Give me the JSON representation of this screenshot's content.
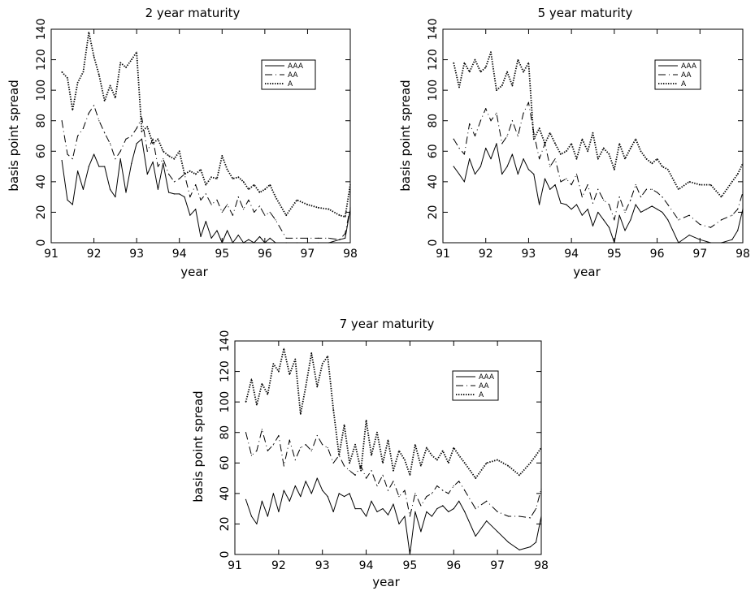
{
  "chart_data": [
    {
      "type": "line",
      "title": "2 year maturity",
      "xlabel": "year",
      "ylabel": "basis point spread",
      "xlim": [
        91,
        98
      ],
      "ylim": [
        0,
        140
      ],
      "xticks": [
        "91",
        "92",
        "93",
        "94",
        "95",
        "96",
        "97",
        "98"
      ],
      "yticks": [
        "0",
        "20",
        "40",
        "60",
        "80",
        "100",
        "120",
        "140"
      ],
      "legend_position": "top-right",
      "series": [
        {
          "name": "AAA",
          "style": "solid",
          "x": [
            91.25,
            91.38,
            91.5,
            91.62,
            91.75,
            91.88,
            92.0,
            92.12,
            92.25,
            92.38,
            92.5,
            92.62,
            92.75,
            92.88,
            93.0,
            93.12,
            93.25,
            93.38,
            93.5,
            93.62,
            93.75,
            93.88,
            94.0,
            94.12,
            94.25,
            94.38,
            94.5,
            94.62,
            94.75,
            94.88,
            95.0,
            95.12,
            95.25,
            95.38,
            95.5,
            95.62,
            95.75,
            95.88,
            96.0,
            96.12,
            96.25,
            96.5,
            96.75,
            97.0,
            97.25,
            97.5,
            97.75,
            97.88,
            98.0
          ],
          "y": [
            54,
            28,
            25,
            47,
            35,
            50,
            58,
            50,
            50,
            35,
            30,
            55,
            33,
            52,
            65,
            68,
            45,
            53,
            35,
            52,
            33,
            32,
            32,
            30,
            18,
            22,
            4,
            14,
            3,
            8,
            0,
            8,
            0,
            5,
            0,
            2,
            0,
            4,
            0,
            3,
            0,
            0,
            0,
            0,
            0,
            0,
            2,
            3,
            22
          ]
        },
        {
          "name": "AA",
          "style": "dashed",
          "x": [
            91.25,
            91.38,
            91.5,
            91.62,
            91.75,
            91.88,
            92.0,
            92.12,
            92.25,
            92.38,
            92.5,
            92.62,
            92.75,
            92.88,
            93.0,
            93.12,
            93.25,
            93.38,
            93.5,
            93.62,
            93.75,
            93.88,
            94.0,
            94.12,
            94.25,
            94.38,
            94.5,
            94.62,
            94.75,
            94.88,
            95.0,
            95.12,
            95.25,
            95.38,
            95.5,
            95.62,
            95.75,
            95.88,
            96.0,
            96.12,
            96.25,
            96.5,
            96.75,
            97.0,
            97.25,
            97.5,
            97.75,
            97.88,
            98.0
          ],
          "y": [
            80,
            58,
            55,
            70,
            75,
            85,
            90,
            80,
            72,
            65,
            55,
            60,
            68,
            70,
            75,
            82,
            60,
            68,
            50,
            55,
            45,
            40,
            42,
            45,
            30,
            38,
            28,
            32,
            25,
            28,
            20,
            25,
            18,
            30,
            22,
            28,
            20,
            24,
            18,
            20,
            15,
            3,
            3,
            3,
            3,
            3,
            2,
            6,
            23
          ]
        },
        {
          "name": "A",
          "style": "dotted",
          "x": [
            91.25,
            91.38,
            91.5,
            91.62,
            91.75,
            91.88,
            92.0,
            92.12,
            92.25,
            92.38,
            92.5,
            92.62,
            92.75,
            92.88,
            93.0,
            93.12,
            93.25,
            93.38,
            93.5,
            93.62,
            93.75,
            93.88,
            94.0,
            94.12,
            94.25,
            94.38,
            94.5,
            94.62,
            94.75,
            94.88,
            95.0,
            95.12,
            95.25,
            95.38,
            95.5,
            95.62,
            95.75,
            95.88,
            96.0,
            96.12,
            96.25,
            96.5,
            96.75,
            97.0,
            97.25,
            97.5,
            97.75,
            97.88,
            98.0
          ],
          "y": [
            112,
            108,
            87,
            105,
            112,
            138,
            122,
            110,
            93,
            103,
            95,
            118,
            115,
            120,
            125,
            73,
            76,
            65,
            68,
            60,
            57,
            55,
            60,
            45,
            47,
            45,
            48,
            38,
            43,
            42,
            57,
            48,
            42,
            43,
            40,
            35,
            38,
            33,
            35,
            38,
            30,
            18,
            28,
            25,
            23,
            22,
            18,
            17,
            38
          ]
        }
      ]
    },
    {
      "type": "line",
      "title": "5 year maturity",
      "xlabel": "year",
      "ylabel": "basis point spread",
      "xlim": [
        91,
        98
      ],
      "ylim": [
        0,
        140
      ],
      "xticks": [
        "91",
        "92",
        "93",
        "94",
        "95",
        "96",
        "97",
        "98"
      ],
      "yticks": [
        "0",
        "20",
        "40",
        "60",
        "80",
        "100",
        "120",
        "140"
      ],
      "legend_position": "top-right",
      "series": [
        {
          "name": "AAA",
          "style": "solid",
          "x": [
            91.25,
            91.38,
            91.5,
            91.62,
            91.75,
            91.88,
            92.0,
            92.12,
            92.25,
            92.38,
            92.5,
            92.62,
            92.75,
            92.88,
            93.0,
            93.12,
            93.25,
            93.38,
            93.5,
            93.62,
            93.75,
            93.88,
            94.0,
            94.12,
            94.25,
            94.38,
            94.5,
            94.62,
            94.75,
            94.88,
            95.0,
            95.12,
            95.25,
            95.38,
            95.5,
            95.62,
            95.75,
            95.88,
            96.0,
            96.12,
            96.25,
            96.5,
            96.75,
            97.0,
            97.25,
            97.5,
            97.75,
            97.88,
            98.0
          ],
          "y": [
            50,
            45,
            40,
            55,
            45,
            50,
            62,
            55,
            65,
            45,
            50,
            58,
            45,
            55,
            48,
            45,
            25,
            42,
            35,
            38,
            26,
            25,
            22,
            25,
            18,
            22,
            11,
            20,
            15,
            10,
            0,
            18,
            8,
            15,
            25,
            20,
            22,
            24,
            22,
            20,
            15,
            0,
            5,
            2,
            0,
            0,
            2,
            8,
            22
          ]
        },
        {
          "name": "AA",
          "style": "dashed",
          "x": [
            91.25,
            91.38,
            91.5,
            91.62,
            91.75,
            91.88,
            92.0,
            92.12,
            92.25,
            92.38,
            92.5,
            92.62,
            92.75,
            92.88,
            93.0,
            93.12,
            93.25,
            93.38,
            93.5,
            93.62,
            93.75,
            93.88,
            94.0,
            94.12,
            94.25,
            94.38,
            94.5,
            94.62,
            94.75,
            94.88,
            95.0,
            95.12,
            95.25,
            95.38,
            95.5,
            95.62,
            95.75,
            95.88,
            96.0,
            96.12,
            96.25,
            96.5,
            96.75,
            97.0,
            97.25,
            97.5,
            97.75,
            97.88,
            98.0
          ],
          "y": [
            68,
            62,
            58,
            78,
            70,
            80,
            88,
            80,
            85,
            65,
            70,
            80,
            70,
            85,
            92,
            72,
            55,
            65,
            50,
            55,
            40,
            42,
            38,
            45,
            30,
            38,
            26,
            35,
            28,
            25,
            15,
            30,
            20,
            28,
            38,
            30,
            35,
            35,
            33,
            30,
            25,
            15,
            18,
            12,
            10,
            15,
            18,
            22,
            33
          ]
        },
        {
          "name": "A",
          "style": "dotted",
          "x": [
            91.25,
            91.38,
            91.5,
            91.62,
            91.75,
            91.88,
            92.0,
            92.12,
            92.25,
            92.38,
            92.5,
            92.62,
            92.75,
            92.88,
            93.0,
            93.12,
            93.25,
            93.38,
            93.5,
            93.62,
            93.75,
            93.88,
            94.0,
            94.12,
            94.25,
            94.38,
            94.5,
            94.62,
            94.75,
            94.88,
            95.0,
            95.12,
            95.25,
            95.38,
            95.5,
            95.62,
            95.75,
            95.88,
            96.0,
            96.12,
            96.25,
            96.5,
            96.75,
            97.0,
            97.25,
            97.5,
            97.75,
            97.88,
            98.0
          ],
          "y": [
            118,
            102,
            118,
            112,
            120,
            112,
            115,
            125,
            100,
            103,
            112,
            103,
            120,
            112,
            118,
            68,
            75,
            65,
            72,
            65,
            58,
            60,
            65,
            55,
            68,
            60,
            72,
            55,
            62,
            58,
            48,
            65,
            55,
            62,
            68,
            60,
            55,
            52,
            55,
            50,
            48,
            35,
            40,
            38,
            38,
            30,
            40,
            45,
            52
          ]
        }
      ]
    },
    {
      "type": "line",
      "title": "7 year maturity",
      "xlabel": "year",
      "ylabel": "basis point spread",
      "xlim": [
        91,
        98
      ],
      "ylim": [
        0,
        140
      ],
      "xticks": [
        "91",
        "92",
        "93",
        "94",
        "95",
        "96",
        "97",
        "98"
      ],
      "yticks": [
        "0",
        "20",
        "40",
        "60",
        "80",
        "100",
        "120",
        "140"
      ],
      "legend_position": "top-right",
      "series": [
        {
          "name": "AAA",
          "style": "solid",
          "x": [
            91.25,
            91.38,
            91.5,
            91.62,
            91.75,
            91.88,
            92.0,
            92.12,
            92.25,
            92.38,
            92.5,
            92.62,
            92.75,
            92.88,
            93.0,
            93.12,
            93.25,
            93.38,
            93.5,
            93.62,
            93.75,
            93.88,
            94.0,
            94.12,
            94.25,
            94.38,
            94.5,
            94.62,
            94.75,
            94.88,
            95.0,
            95.12,
            95.25,
            95.38,
            95.5,
            95.62,
            95.75,
            95.88,
            96.0,
            96.12,
            96.25,
            96.5,
            96.75,
            97.0,
            97.25,
            97.5,
            97.75,
            97.88,
            98.0
          ],
          "y": [
            36,
            25,
            20,
            35,
            25,
            40,
            28,
            42,
            35,
            45,
            38,
            48,
            40,
            50,
            42,
            38,
            28,
            40,
            38,
            40,
            30,
            30,
            25,
            35,
            28,
            30,
            26,
            33,
            20,
            25,
            0,
            28,
            15,
            28,
            25,
            30,
            32,
            28,
            30,
            35,
            28,
            12,
            22,
            15,
            8,
            3,
            5,
            8,
            25
          ]
        },
        {
          "name": "AA",
          "style": "dashed",
          "x": [
            91.25,
            91.38,
            91.5,
            91.62,
            91.75,
            91.88,
            92.0,
            92.12,
            92.25,
            92.38,
            92.5,
            92.62,
            92.75,
            92.88,
            93.0,
            93.12,
            93.25,
            93.38,
            93.5,
            93.62,
            93.75,
            93.88,
            94.0,
            94.12,
            94.25,
            94.38,
            94.5,
            94.62,
            94.75,
            94.88,
            95.0,
            95.12,
            95.25,
            95.38,
            95.5,
            95.62,
            95.75,
            95.88,
            96.0,
            96.12,
            96.25,
            96.5,
            96.75,
            97.0,
            97.25,
            97.5,
            97.75,
            97.88,
            98.0
          ],
          "y": [
            80,
            65,
            68,
            82,
            68,
            72,
            78,
            58,
            75,
            62,
            70,
            72,
            68,
            78,
            72,
            70,
            60,
            65,
            58,
            55,
            52,
            58,
            50,
            55,
            45,
            52,
            42,
            48,
            38,
            42,
            25,
            40,
            32,
            38,
            40,
            45,
            42,
            40,
            45,
            48,
            42,
            30,
            35,
            28,
            25,
            25,
            24,
            30,
            43
          ]
        },
        {
          "name": "A",
          "style": "dotted",
          "x": [
            91.25,
            91.38,
            91.5,
            91.62,
            91.75,
            91.88,
            92.0,
            92.12,
            92.25,
            92.38,
            92.5,
            92.62,
            92.75,
            92.88,
            93.0,
            93.12,
            93.25,
            93.38,
            93.5,
            93.62,
            93.75,
            93.88,
            94.0,
            94.12,
            94.25,
            94.38,
            94.5,
            94.62,
            94.75,
            94.88,
            95.0,
            95.12,
            95.25,
            95.38,
            95.5,
            95.62,
            95.75,
            95.88,
            96.0,
            96.12,
            96.25,
            96.5,
            96.75,
            97.0,
            97.25,
            97.5,
            97.75,
            97.88,
            98.0
          ],
          "y": [
            100,
            115,
            98,
            112,
            105,
            125,
            120,
            135,
            118,
            128,
            92,
            110,
            132,
            110,
            125,
            130,
            95,
            65,
            85,
            60,
            72,
            55,
            88,
            65,
            80,
            60,
            75,
            55,
            68,
            62,
            52,
            72,
            58,
            70,
            65,
            62,
            68,
            60,
            70,
            65,
            60,
            50,
            60,
            62,
            58,
            52,
            60,
            65,
            70
          ]
        }
      ]
    }
  ]
}
